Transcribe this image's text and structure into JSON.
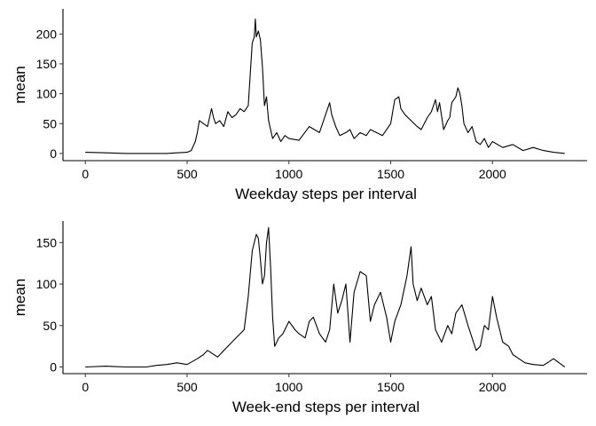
{
  "chart_data": [
    {
      "type": "line",
      "xlabel": "Weekday steps per interval",
      "ylabel": "mean",
      "xlim": [
        -110,
        2465
      ],
      "ylim": [
        -12,
        242
      ],
      "xticks": [
        0,
        500,
        1000,
        1500,
        2000
      ],
      "yticks": [
        0,
        50,
        100,
        150,
        200
      ],
      "grid": false,
      "line_color": "#000000",
      "series": [
        {
          "x": [
            0,
            100,
            200,
            300,
            400,
            450,
            500,
            520,
            540,
            550,
            560,
            600,
            620,
            630,
            640,
            660,
            680,
            700,
            720,
            740,
            760,
            780,
            800,
            820,
            830,
            835,
            840,
            850,
            860,
            870,
            880,
            890,
            900,
            910,
            920,
            940,
            960,
            980,
            1000,
            1050,
            1100,
            1150,
            1200,
            1210,
            1230,
            1250,
            1280,
            1300,
            1320,
            1350,
            1380,
            1400,
            1430,
            1460,
            1500,
            1520,
            1540,
            1550,
            1570,
            1600,
            1630,
            1650,
            1680,
            1700,
            1720,
            1730,
            1740,
            1760,
            1780,
            1790,
            1800,
            1820,
            1830,
            1840,
            1850,
            1860,
            1880,
            1900,
            1920,
            1940,
            1960,
            1980,
            2000,
            2050,
            2100,
            2150,
            2200,
            2250,
            2300,
            2355
          ],
          "values": [
            2,
            1,
            0,
            0,
            0,
            1,
            2,
            5,
            20,
            35,
            55,
            45,
            75,
            60,
            50,
            55,
            45,
            70,
            60,
            65,
            75,
            70,
            80,
            185,
            195,
            225,
            195,
            205,
            190,
            145,
            80,
            95,
            55,
            40,
            25,
            35,
            20,
            30,
            25,
            22,
            45,
            35,
            85,
            65,
            45,
            30,
            35,
            40,
            25,
            35,
            30,
            40,
            35,
            30,
            50,
            90,
            95,
            75,
            65,
            55,
            45,
            40,
            60,
            70,
            90,
            70,
            85,
            40,
            55,
            60,
            85,
            95,
            110,
            100,
            80,
            50,
            35,
            45,
            20,
            15,
            25,
            10,
            20,
            10,
            15,
            5,
            10,
            5,
            2,
            0
          ]
        }
      ]
    },
    {
      "type": "line",
      "xlabel": "Week-end steps per interval",
      "ylabel": "mean",
      "xlim": [
        -110,
        2465
      ],
      "ylim": [
        -8,
        176
      ],
      "xticks": [
        0,
        500,
        1000,
        1500,
        2000
      ],
      "yticks": [
        0,
        50,
        100,
        150
      ],
      "grid": false,
      "line_color": "#000000",
      "series": [
        {
          "x": [
            0,
            100,
            200,
            300,
            350,
            400,
            450,
            500,
            550,
            580,
            600,
            650,
            700,
            740,
            780,
            800,
            820,
            840,
            850,
            860,
            870,
            880,
            890,
            900,
            910,
            920,
            930,
            950,
            970,
            1000,
            1030,
            1050,
            1080,
            1100,
            1120,
            1150,
            1180,
            1200,
            1220,
            1240,
            1260,
            1280,
            1300,
            1320,
            1350,
            1380,
            1400,
            1420,
            1450,
            1480,
            1500,
            1520,
            1550,
            1580,
            1600,
            1610,
            1630,
            1650,
            1680,
            1700,
            1720,
            1750,
            1780,
            1800,
            1820,
            1850,
            1880,
            1900,
            1920,
            1940,
            1960,
            1980,
            2000,
            2020,
            2050,
            2080,
            2100,
            2130,
            2160,
            2200,
            2250,
            2300,
            2355
          ],
          "values": [
            0,
            1,
            0,
            0,
            2,
            3,
            5,
            3,
            10,
            15,
            20,
            12,
            25,
            35,
            45,
            85,
            140,
            160,
            155,
            130,
            100,
            110,
            150,
            168,
            120,
            60,
            25,
            35,
            40,
            55,
            45,
            40,
            35,
            55,
            60,
            40,
            30,
            45,
            100,
            65,
            80,
            100,
            30,
            90,
            115,
            110,
            55,
            75,
            90,
            60,
            30,
            55,
            75,
            110,
            145,
            100,
            80,
            95,
            75,
            85,
            45,
            30,
            50,
            40,
            65,
            75,
            50,
            35,
            20,
            25,
            50,
            45,
            85,
            60,
            30,
            25,
            15,
            10,
            5,
            3,
            2,
            10,
            0
          ]
        }
      ]
    }
  ]
}
